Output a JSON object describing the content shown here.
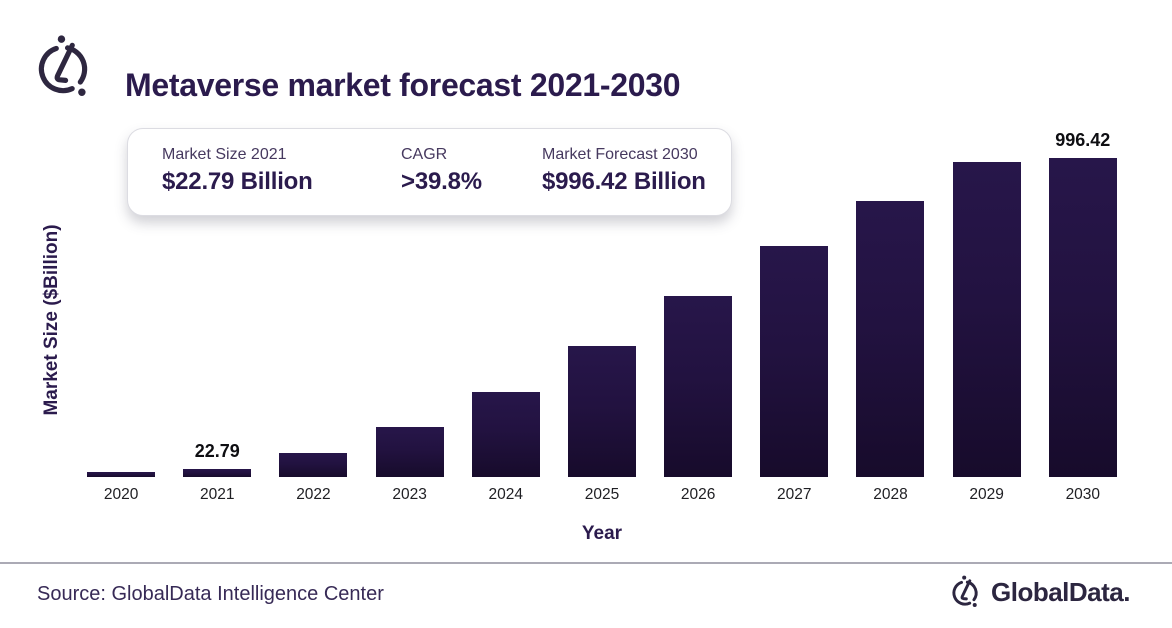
{
  "header": {
    "title": "Metaverse market forecast 2021-2030",
    "logo": "globaldata-mark-icon"
  },
  "stats_card": {
    "stats": [
      {
        "label": "Market Size 2021",
        "value": "$22.79 Billion"
      },
      {
        "label": "CAGR",
        "value": ">39.8%"
      },
      {
        "label": "Market Forecast 2030",
        "value": "$996.42 Billion"
      }
    ]
  },
  "chart_data": {
    "type": "bar",
    "title": "Metaverse market forecast 2021-2030",
    "categories": [
      "2020",
      "2021",
      "2022",
      "2023",
      "2024",
      "2025",
      "2026",
      "2027",
      "2028",
      "2029",
      "2030"
    ],
    "values": [
      14,
      22.79,
      68,
      143,
      244,
      375,
      521,
      664,
      792,
      905,
      996.42
    ],
    "data_labels": {
      "2021": "22.79",
      "2030": "996.42"
    },
    "xlabel": "Year",
    "ylabel": "Market Size ($Billion)",
    "ylim": [
      0,
      996.42
    ],
    "grid": false,
    "legend": false,
    "bar_color_top": "#27164a",
    "bar_color_bottom": "#170b2b"
  },
  "footer": {
    "source": "Source: GlobalData Intelligence Center",
    "brand": "GlobalData.",
    "brand_icon": "globaldata-mark-icon"
  },
  "colors": {
    "accent_dark_purple": "#2b1b4d",
    "stat_label": "#46395f",
    "tick_text": "#202024",
    "separator": "#abaab5",
    "brand_navy": "#2c2640"
  }
}
